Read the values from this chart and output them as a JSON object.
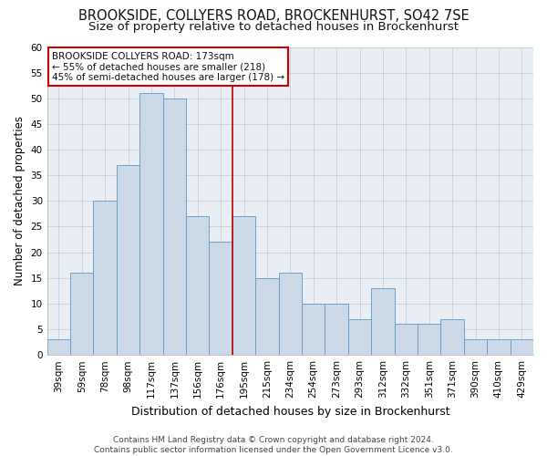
{
  "title_line1": "BROOKSIDE, COLLYERS ROAD, BROCKENHURST, SO42 7SE",
  "title_line2": "Size of property relative to detached houses in Brockenhurst",
  "xlabel": "Distribution of detached houses by size in Brockenhurst",
  "ylabel": "Number of detached properties",
  "categories": [
    "39sqm",
    "59sqm",
    "78sqm",
    "98sqm",
    "117sqm",
    "137sqm",
    "156sqm",
    "176sqm",
    "195sqm",
    "215sqm",
    "234sqm",
    "254sqm",
    "273sqm",
    "293sqm",
    "312sqm",
    "332sqm",
    "351sqm",
    "371sqm",
    "390sqm",
    "410sqm",
    "429sqm"
  ],
  "values": [
    3,
    16,
    30,
    37,
    51,
    50,
    27,
    22,
    27,
    15,
    16,
    10,
    10,
    7,
    13,
    6,
    6,
    7,
    3,
    3,
    3
  ],
  "bar_color": "#ccd9e8",
  "bar_edge_color": "#6aa0c8",
  "reference_line_index": 7,
  "reference_line_color": "#bb0000",
  "annotation_text": "BROOKSIDE COLLYERS ROAD: 173sqm\n← 55% of detached houses are smaller (218)\n45% of semi-detached houses are larger (178) →",
  "annotation_box_facecolor": "#ffffff",
  "annotation_box_edgecolor": "#cc0000",
  "ylim": [
    0,
    60
  ],
  "yticks": [
    0,
    5,
    10,
    15,
    20,
    25,
    30,
    35,
    40,
    45,
    50,
    55,
    60
  ],
  "grid_color": "#c8d0d8",
  "background_color": "#e8eef4",
  "footer_text": "Contains HM Land Registry data © Crown copyright and database right 2024.\nContains public sector information licensed under the Open Government Licence v3.0.",
  "title_fontsize": 10.5,
  "subtitle_fontsize": 9.5,
  "ylabel_fontsize": 8.5,
  "xlabel_fontsize": 9,
  "tick_fontsize": 7.5,
  "annotation_fontsize": 7.5,
  "footer_fontsize": 6.5
}
